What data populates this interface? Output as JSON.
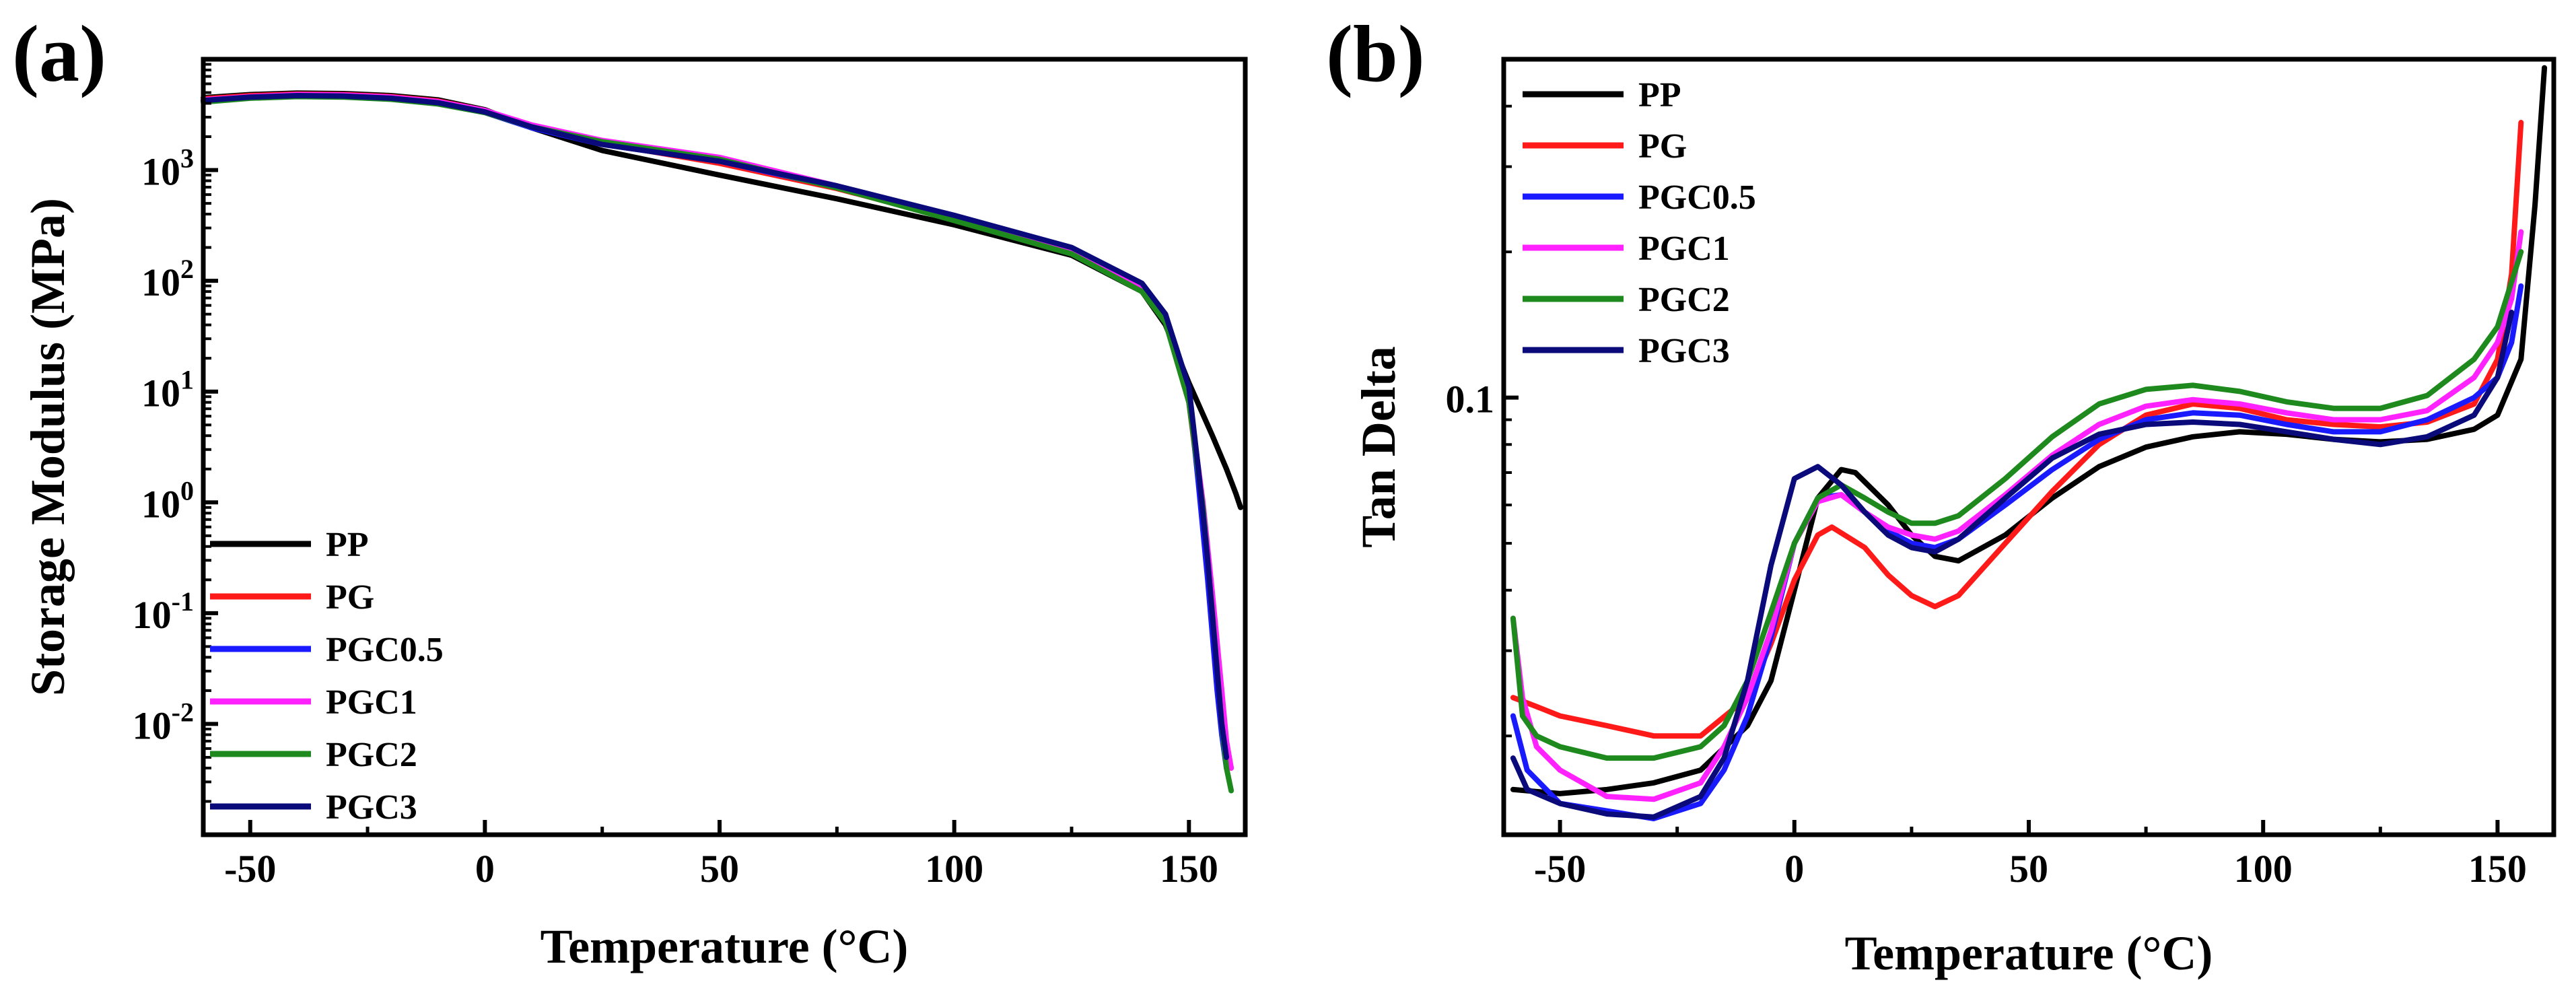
{
  "figure": {
    "panels": [
      "(a)",
      "(b)"
    ]
  },
  "series_colors": {
    "PP": "#000000",
    "PG": "#ff1a1a",
    "PGC0.5": "#1a1aff",
    "PGC1": "#ff22ff",
    "PGC2": "#1e8a1e",
    "PGC3": "#0a0a7a"
  },
  "chart_data": [
    {
      "type": "line",
      "panel_label": "(a)",
      "title": "",
      "xlabel": "Temperature (°C)",
      "ylabel": "Storage Modulus (MPa)",
      "yscale": "log",
      "xlim": [
        -60,
        162
      ],
      "ylim": [
        0.001,
        10000
      ],
      "xticks": [
        -50,
        0,
        50,
        100,
        150
      ],
      "xtick_labels": [
        "-50",
        "0",
        "50",
        "100",
        "150"
      ],
      "yticks": [
        0.01,
        0.1,
        1,
        10,
        100,
        1000
      ],
      "ytick_labels": [
        {
          "base": "10",
          "exp": "-2"
        },
        {
          "base": "10",
          "exp": "-1"
        },
        {
          "base": "10",
          "exp": "0"
        },
        {
          "base": "10",
          "exp": "1"
        },
        {
          "base": "10",
          "exp": "2"
        },
        {
          "base": "10",
          "exp": "3"
        }
      ],
      "legend_position": "bottom-left",
      "series": [
        {
          "name": "PP",
          "x": [
            -60,
            -50,
            -40,
            -30,
            -20,
            -10,
            0,
            10,
            25,
            50,
            75,
            100,
            125,
            140,
            145,
            150,
            155,
            158,
            160,
            161
          ],
          "y": [
            4500,
            4800,
            4950,
            4900,
            4700,
            4300,
            3500,
            2400,
            1500,
            900,
            550,
            320,
            170,
            80,
            40,
            12,
            4,
            2,
            1.2,
            0.9
          ]
        },
        {
          "name": "PG",
          "x": [
            -60,
            -50,
            -40,
            -30,
            -20,
            -10,
            0,
            10,
            25,
            50,
            75,
            100,
            125,
            140,
            145,
            150,
            153,
            155,
            156,
            157,
            158,
            159
          ],
          "y": [
            4400,
            4700,
            4850,
            4800,
            4600,
            4200,
            3450,
            2500,
            1750,
            1150,
            680,
            360,
            180,
            90,
            50,
            8,
            0.8,
            0.1,
            0.04,
            0.015,
            0.006,
            0.004
          ]
        },
        {
          "name": "PGC0.5",
          "x": [
            -60,
            -50,
            -40,
            -30,
            -20,
            -10,
            0,
            10,
            25,
            50,
            75,
            100,
            125,
            140,
            145,
            150,
            152,
            154,
            156,
            157,
            158
          ],
          "y": [
            4200,
            4500,
            4650,
            4600,
            4400,
            4000,
            3300,
            2400,
            1700,
            1200,
            700,
            380,
            190,
            85,
            45,
            10,
            1.5,
            0.2,
            0.02,
            0.008,
            0.004
          ]
        },
        {
          "name": "PGC1",
          "x": [
            -60,
            -50,
            -40,
            -30,
            -20,
            -10,
            0,
            10,
            25,
            50,
            75,
            100,
            125,
            140,
            145,
            150,
            153,
            155,
            157,
            158,
            159
          ],
          "y": [
            4300,
            4600,
            4800,
            4750,
            4550,
            4150,
            3450,
            2550,
            1850,
            1300,
            720,
            370,
            185,
            88,
            48,
            9,
            1.0,
            0.15,
            0.02,
            0.007,
            0.004
          ]
        },
        {
          "name": "PGC2",
          "x": [
            -60,
            -50,
            -40,
            -30,
            -20,
            -10,
            0,
            10,
            25,
            50,
            75,
            100,
            125,
            140,
            145,
            150,
            153,
            155,
            157,
            158,
            159
          ],
          "y": [
            4100,
            4450,
            4600,
            4550,
            4350,
            3950,
            3300,
            2450,
            1800,
            1250,
            690,
            350,
            175,
            80,
            42,
            8,
            0.9,
            0.1,
            0.01,
            0.004,
            0.0025
          ]
        },
        {
          "name": "PGC3",
          "x": [
            -60,
            -50,
            -40,
            -30,
            -20,
            -10,
            0,
            10,
            25,
            50,
            75,
            100,
            125,
            140,
            145,
            150,
            152,
            154,
            156,
            157,
            158
          ],
          "y": [
            4250,
            4550,
            4700,
            4650,
            4450,
            4050,
            3350,
            2450,
            1700,
            1200,
            720,
            390,
            200,
            95,
            50,
            11,
            2,
            0.3,
            0.03,
            0.01,
            0.005
          ]
        }
      ]
    },
    {
      "type": "line",
      "panel_label": "(b)",
      "title": "",
      "xlabel": "Temperature (°C)",
      "ylabel": "Tan Delta",
      "yscale": "log",
      "xlim": [
        -62,
        162
      ],
      "ylim": [
        0.0125,
        0.5
      ],
      "xticks": [
        -50,
        0,
        50,
        100,
        150
      ],
      "xtick_labels": [
        "-50",
        "0",
        "50",
        "100",
        "150"
      ],
      "yticks": [
        0.1
      ],
      "ytick_labels": [
        "0.1"
      ],
      "legend_position": "top-left",
      "series": [
        {
          "name": "PP",
          "x": [
            -60,
            -50,
            -40,
            -30,
            -20,
            -10,
            -5,
            0,
            5,
            10,
            13,
            20,
            25,
            30,
            35,
            45,
            55,
            65,
            75,
            85,
            95,
            105,
            115,
            125,
            135,
            145,
            150,
            155,
            158,
            160
          ],
          "y": [
            0.0155,
            0.0152,
            0.0155,
            0.016,
            0.017,
            0.021,
            0.026,
            0.04,
            0.062,
            0.071,
            0.07,
            0.06,
            0.052,
            0.047,
            0.046,
            0.052,
            0.062,
            0.072,
            0.079,
            0.083,
            0.085,
            0.084,
            0.082,
            0.081,
            0.082,
            0.086,
            0.092,
            0.12,
            0.25,
            0.48
          ]
        },
        {
          "name": "PG",
          "x": [
            -60,
            -55,
            -50,
            -40,
            -30,
            -20,
            -10,
            -5,
            0,
            5,
            8,
            15,
            20,
            25,
            30,
            35,
            45,
            55,
            65,
            75,
            85,
            95,
            105,
            115,
            125,
            135,
            145,
            150,
            153,
            155
          ],
          "y": [
            0.024,
            0.023,
            0.022,
            0.021,
            0.02,
            0.02,
            0.024,
            0.031,
            0.042,
            0.052,
            0.054,
            0.049,
            0.043,
            0.039,
            0.037,
            0.039,
            0.05,
            0.064,
            0.08,
            0.092,
            0.097,
            0.095,
            0.09,
            0.088,
            0.087,
            0.089,
            0.097,
            0.12,
            0.18,
            0.37
          ]
        },
        {
          "name": "PGC0.5",
          "x": [
            -60,
            -57,
            -50,
            -40,
            -30,
            -20,
            -15,
            -10,
            -5,
            0,
            5,
            10,
            15,
            20,
            25,
            30,
            35,
            45,
            55,
            65,
            75,
            85,
            95,
            105,
            115,
            125,
            135,
            145,
            150,
            153,
            155
          ],
          "y": [
            0.022,
            0.017,
            0.0145,
            0.014,
            0.0135,
            0.0145,
            0.017,
            0.022,
            0.032,
            0.05,
            0.062,
            0.063,
            0.058,
            0.053,
            0.05,
            0.049,
            0.051,
            0.06,
            0.071,
            0.082,
            0.09,
            0.093,
            0.092,
            0.088,
            0.085,
            0.085,
            0.09,
            0.1,
            0.11,
            0.13,
            0.17
          ]
        },
        {
          "name": "PGC1",
          "x": [
            -60,
            -58,
            -55,
            -50,
            -40,
            -30,
            -20,
            -15,
            -10,
            -5,
            0,
            5,
            10,
            15,
            20,
            25,
            30,
            35,
            45,
            55,
            65,
            75,
            85,
            95,
            105,
            115,
            125,
            135,
            145,
            150,
            153,
            155
          ],
          "y": [
            0.035,
            0.024,
            0.019,
            0.017,
            0.015,
            0.0148,
            0.016,
            0.019,
            0.024,
            0.033,
            0.05,
            0.061,
            0.063,
            0.058,
            0.054,
            0.052,
            0.051,
            0.053,
            0.063,
            0.076,
            0.088,
            0.096,
            0.099,
            0.097,
            0.093,
            0.09,
            0.09,
            0.094,
            0.11,
            0.13,
            0.16,
            0.22
          ]
        },
        {
          "name": "PGC2",
          "x": [
            -60,
            -58,
            -55,
            -50,
            -40,
            -30,
            -20,
            -15,
            -10,
            -5,
            0,
            5,
            10,
            15,
            20,
            25,
            30,
            35,
            45,
            55,
            65,
            75,
            85,
            95,
            105,
            115,
            125,
            135,
            145,
            150,
            155
          ],
          "y": [
            0.035,
            0.022,
            0.02,
            0.019,
            0.018,
            0.018,
            0.019,
            0.021,
            0.026,
            0.036,
            0.05,
            0.062,
            0.066,
            0.062,
            0.058,
            0.055,
            0.055,
            0.057,
            0.068,
            0.083,
            0.097,
            0.104,
            0.106,
            0.103,
            0.098,
            0.095,
            0.095,
            0.101,
            0.12,
            0.14,
            0.2
          ]
        },
        {
          "name": "PGC3",
          "x": [
            -60,
            -57,
            -50,
            -40,
            -30,
            -20,
            -15,
            -10,
            -5,
            0,
            5,
            10,
            15,
            20,
            25,
            30,
            35,
            45,
            55,
            65,
            75,
            85,
            95,
            105,
            115,
            125,
            135,
            145,
            150,
            153
          ],
          "y": [
            0.018,
            0.0155,
            0.0145,
            0.0138,
            0.0136,
            0.015,
            0.018,
            0.026,
            0.045,
            0.068,
            0.072,
            0.066,
            0.058,
            0.052,
            0.049,
            0.048,
            0.051,
            0.062,
            0.075,
            0.084,
            0.088,
            0.089,
            0.088,
            0.085,
            0.082,
            0.08,
            0.083,
            0.092,
            0.11,
            0.15
          ]
        }
      ]
    }
  ]
}
